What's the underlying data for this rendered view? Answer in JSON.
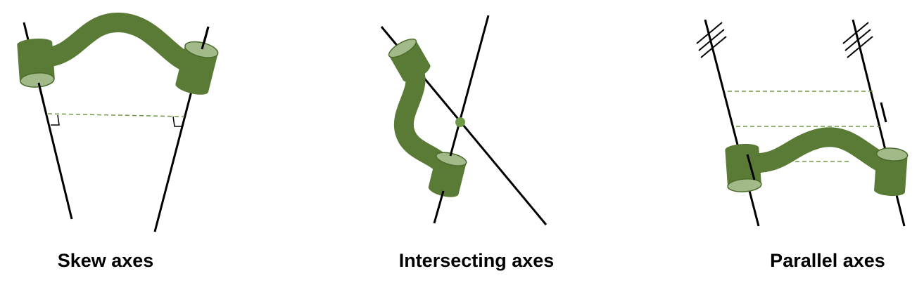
{
  "captions": {
    "skew": "Skew axes",
    "intersecting": "Intersecting axes",
    "parallel": "Parallel axes"
  },
  "colors": {
    "link": "#5a7b35",
    "link_dark": "#4a6a2a",
    "joint_face": "#a2b98a",
    "dashed": "#6f9a45",
    "axis": "#000000",
    "background": "#ffffff"
  }
}
